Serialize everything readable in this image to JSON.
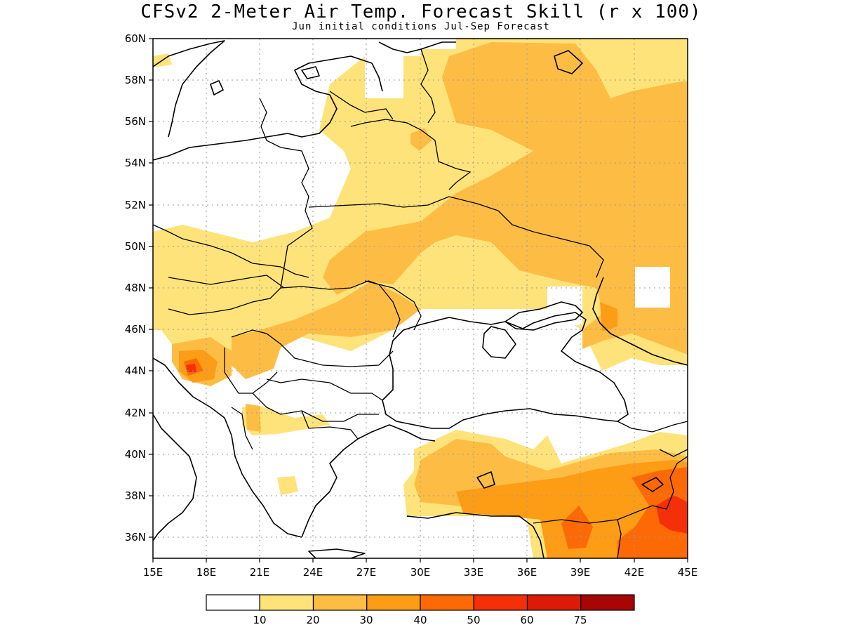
{
  "title": "CFSv2 2-Meter Air Temp. Forecast Skill (r x 100)",
  "subtitle": "Jun initial conditions  Jul-Sep Forecast",
  "map": {
    "lon_range": [
      15,
      45
    ],
    "lat_range": [
      35,
      60
    ],
    "grid": true,
    "lat_ticks": [
      "60N",
      "58N",
      "56N",
      "54N",
      "52N",
      "50N",
      "48N",
      "46N",
      "44N",
      "42N",
      "40N",
      "38N",
      "36N"
    ],
    "lon_ticks": [
      "15E",
      "18E",
      "21E",
      "24E",
      "27E",
      "30E",
      "33E",
      "36E",
      "39E",
      "42E",
      "45E"
    ]
  },
  "colorbar": {
    "colors": [
      "#ffffff",
      "#fee37a",
      "#fdbd45",
      "#fd9c15",
      "#fd6a05",
      "#f43008",
      "#dc1a08",
      "#a80505"
    ],
    "labels": [
      "10",
      "20",
      "30",
      "40",
      "50",
      "60",
      "75"
    ]
  }
}
